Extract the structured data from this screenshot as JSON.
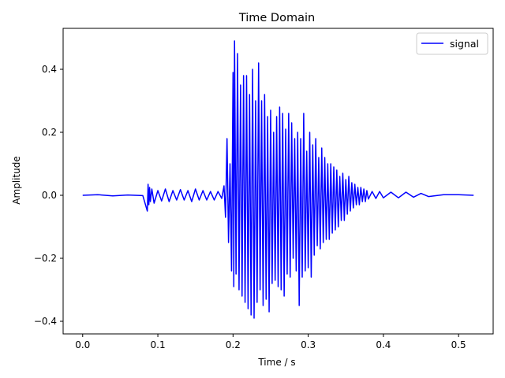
{
  "chart_data": {
    "type": "line",
    "title": "Time Domain",
    "xlabel": "Time / s",
    "ylabel": "Amplitude",
    "xlim": [
      -0.026,
      0.546
    ],
    "ylim": [
      -0.44,
      0.53
    ],
    "xticks": [
      0.0,
      0.1,
      0.2,
      0.3,
      0.4,
      0.5
    ],
    "xtick_labels": [
      "0.0",
      "0.1",
      "0.2",
      "0.3",
      "0.4",
      "0.5"
    ],
    "yticks": [
      -0.4,
      -0.2,
      0.0,
      0.2,
      0.4
    ],
    "ytick_labels": [
      "−0.4",
      "−0.2",
      "0.0",
      "0.2",
      "0.4"
    ],
    "grid": false,
    "legend_position": "top-right",
    "series": [
      {
        "name": "signal",
        "color": "#0000ff",
        "x": [
          0.0,
          0.02,
          0.04,
          0.06,
          0.08,
          0.086,
          0.087,
          0.088,
          0.089,
          0.09,
          0.092,
          0.095,
          0.1,
          0.105,
          0.11,
          0.115,
          0.12,
          0.125,
          0.13,
          0.135,
          0.14,
          0.145,
          0.15,
          0.155,
          0.16,
          0.165,
          0.17,
          0.175,
          0.18,
          0.185,
          0.188,
          0.19,
          0.192,
          0.194,
          0.196,
          0.198,
          0.2,
          0.201,
          0.202,
          0.204,
          0.206,
          0.208,
          0.21,
          0.212,
          0.214,
          0.216,
          0.218,
          0.22,
          0.222,
          0.224,
          0.226,
          0.228,
          0.23,
          0.232,
          0.234,
          0.236,
          0.238,
          0.24,
          0.242,
          0.244,
          0.246,
          0.248,
          0.25,
          0.252,
          0.254,
          0.256,
          0.258,
          0.26,
          0.262,
          0.264,
          0.266,
          0.268,
          0.27,
          0.272,
          0.274,
          0.276,
          0.278,
          0.28,
          0.282,
          0.284,
          0.286,
          0.288,
          0.29,
          0.292,
          0.294,
          0.296,
          0.298,
          0.3,
          0.302,
          0.304,
          0.306,
          0.308,
          0.31,
          0.312,
          0.314,
          0.316,
          0.318,
          0.32,
          0.322,
          0.324,
          0.326,
          0.328,
          0.33,
          0.332,
          0.334,
          0.336,
          0.338,
          0.34,
          0.342,
          0.344,
          0.346,
          0.348,
          0.35,
          0.352,
          0.354,
          0.356,
          0.358,
          0.36,
          0.362,
          0.364,
          0.366,
          0.368,
          0.37,
          0.372,
          0.374,
          0.376,
          0.378,
          0.38,
          0.385,
          0.39,
          0.395,
          0.4,
          0.41,
          0.42,
          0.43,
          0.44,
          0.45,
          0.46,
          0.48,
          0.5,
          0.52
        ],
        "values": [
          0.0,
          0.002,
          -0.002,
          0.001,
          -0.001,
          -0.05,
          0.035,
          -0.03,
          0.025,
          -0.02,
          0.02,
          -0.025,
          0.015,
          -0.018,
          0.02,
          -0.02,
          0.015,
          -0.015,
          0.018,
          -0.015,
          0.015,
          -0.02,
          0.02,
          -0.015,
          0.015,
          -0.015,
          0.012,
          -0.015,
          0.012,
          -0.01,
          0.03,
          -0.07,
          0.18,
          -0.15,
          0.1,
          -0.24,
          0.39,
          -0.29,
          0.49,
          -0.25,
          0.45,
          -0.3,
          0.35,
          -0.32,
          0.38,
          -0.34,
          0.38,
          -0.36,
          0.32,
          -0.38,
          0.4,
          -0.39,
          0.3,
          -0.34,
          0.42,
          -0.3,
          0.3,
          -0.35,
          0.32,
          -0.33,
          0.25,
          -0.37,
          0.27,
          -0.28,
          0.2,
          -0.27,
          0.25,
          -0.29,
          0.28,
          -0.3,
          0.26,
          -0.32,
          0.21,
          -0.25,
          0.26,
          -0.26,
          0.23,
          -0.2,
          0.18,
          -0.24,
          0.2,
          -0.35,
          0.18,
          -0.26,
          0.26,
          -0.24,
          0.14,
          -0.23,
          0.2,
          -0.26,
          0.16,
          -0.19,
          0.18,
          -0.16,
          0.12,
          -0.17,
          0.15,
          -0.15,
          0.12,
          -0.14,
          0.1,
          -0.14,
          0.1,
          -0.12,
          0.09,
          -0.11,
          0.08,
          -0.1,
          0.06,
          -0.08,
          0.07,
          -0.08,
          0.05,
          -0.06,
          0.06,
          -0.05,
          0.04,
          -0.04,
          0.035,
          -0.03,
          0.025,
          -0.03,
          0.025,
          -0.02,
          0.02,
          -0.02,
          0.015,
          -0.012,
          0.012,
          -0.01,
          0.012,
          -0.008,
          0.01,
          -0.008,
          0.01,
          -0.006,
          0.006,
          -0.004,
          0.002,
          0.002,
          0.0
        ]
      }
    ]
  }
}
